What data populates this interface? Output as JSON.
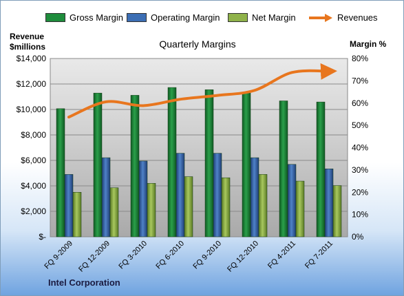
{
  "chart_data": {
    "type": "bar",
    "title": "Quarterly Margins",
    "categories": [
      "FQ 9-2009",
      "FQ 12-2009",
      "FQ 3-2010",
      "FQ 6-2010",
      "FQ 9-2010",
      "FQ 12-2010",
      "FQ 4-2011",
      "FQ 7-2011"
    ],
    "ylabel_left": "Revenue $millions",
    "ylabel_right": "Margin %",
    "ylim_left": [
      0,
      14000
    ],
    "ylim_right": [
      0,
      80
    ],
    "yticks_left": [
      "$-",
      "$2,000",
      "$4,000",
      "$6,000",
      "$8,000",
      "$10,000",
      "$12,000",
      "$14,000"
    ],
    "yticks_right": [
      "0%",
      "10%",
      "20%",
      "30%",
      "40%",
      "50%",
      "60%",
      "70%",
      "80%"
    ],
    "legend_position": "top",
    "series": [
      {
        "name": "Gross Margin",
        "type": "bar",
        "axis": "right",
        "color": "#1e8c3c",
        "values": [
          57.5,
          64.5,
          63.5,
          67.0,
          66.0,
          64.5,
          61.0,
          60.5
        ]
      },
      {
        "name": "Operating Margin",
        "type": "bar",
        "axis": "right",
        "color": "#3c6eb4",
        "values": [
          28.0,
          35.5,
          34.0,
          37.5,
          37.5,
          35.5,
          32.5,
          30.5
        ]
      },
      {
        "name": "Net Margin",
        "type": "bar",
        "axis": "right",
        "color": "#8fb24a",
        "values": [
          20.0,
          22.0,
          24.0,
          27.0,
          26.5,
          28.0,
          25.0,
          23.0
        ]
      },
      {
        "name": "Revenues",
        "type": "line",
        "axis": "left",
        "color": "#e8761e",
        "values": [
          9400,
          10600,
          10300,
          10800,
          11100,
          11500,
          12900,
          13000
        ]
      }
    ],
    "grid": true,
    "company": "Intel Corporation"
  }
}
